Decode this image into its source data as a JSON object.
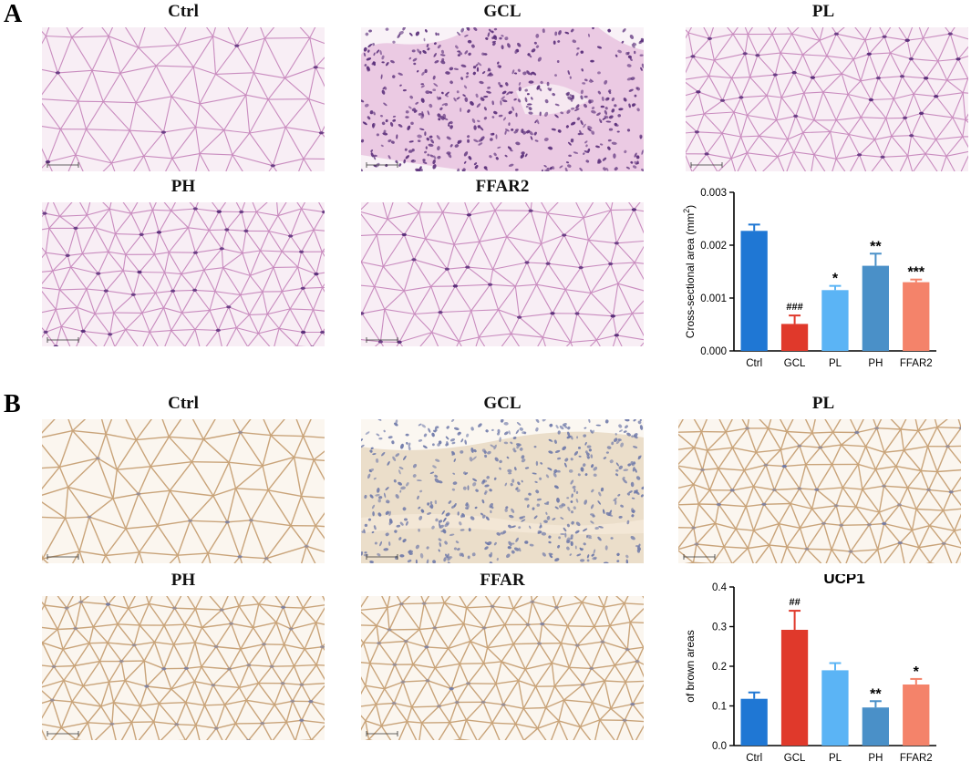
{
  "panel_a": {
    "letter": "A",
    "images": [
      {
        "title": "Ctrl",
        "stain": "he",
        "kind": "adipose-large"
      },
      {
        "title": "GCL",
        "stain": "he",
        "kind": "dense"
      },
      {
        "title": "PL",
        "stain": "he",
        "kind": "adipose-small"
      },
      {
        "title": "PH",
        "stain": "he",
        "kind": "adipose-small"
      },
      {
        "title": "FFAR2",
        "stain": "he",
        "kind": "adipose-medium"
      }
    ]
  },
  "panel_b": {
    "letter": "B",
    "images": [
      {
        "title": "Ctrl",
        "stain": "ihc",
        "kind": "adipose-large"
      },
      {
        "title": "GCL",
        "stain": "ihc",
        "kind": "dense"
      },
      {
        "title": "PL",
        "stain": "ihc",
        "kind": "adipose-small"
      },
      {
        "title": "PH",
        "stain": "ihc",
        "kind": "adipose-small"
      },
      {
        "title": "FFAR",
        "stain": "ihc",
        "kind": "adipose-small"
      }
    ]
  },
  "colors": {
    "ctrl": "#1f77d4",
    "gcl": "#e0392b",
    "pl": "#5bb4f5",
    "ph": "#4a90c8",
    "ffar2": "#f4836a",
    "he_bg": "#f8eef5",
    "he_membrane": "#c98cbf",
    "he_nucleus": "#5a2f7a",
    "ihc_bg": "#fbf6ef",
    "ihc_membrane": "#c9a47a",
    "ihc_nucleus": "#6c77a8"
  },
  "chart_data": [
    {
      "type": "bar",
      "title": "",
      "ylabel": "Cross-sectional area (mm",
      "ylabel_sup": "2",
      "ylabel_end": ")",
      "xlabel": "",
      "categories": [
        "Ctrl",
        "GCL",
        "PL",
        "PH",
        "FFAR2"
      ],
      "values": [
        0.00227,
        0.00051,
        0.00115,
        0.00161,
        0.0013
      ],
      "errors": [
        0.00012,
        0.00016,
        8e-05,
        0.00023,
        5e-05
      ],
      "annotations": [
        "",
        "###",
        "*",
        "**",
        "***"
      ],
      "ylim": [
        0,
        0.003
      ],
      "yticks": [
        "0.000",
        "0.001",
        "0.002",
        "0.003"
      ],
      "ytick_values": [
        0,
        0.001,
        0.002,
        0.003
      ]
    },
    {
      "type": "bar",
      "title": "UCP1",
      "ylabel": "of brown areas",
      "xlabel": "",
      "categories": [
        "Ctrl",
        "GCL",
        "PL",
        "PH",
        "FFAR2"
      ],
      "values": [
        0.118,
        0.292,
        0.19,
        0.096,
        0.154
      ],
      "errors": [
        0.016,
        0.048,
        0.018,
        0.016,
        0.014
      ],
      "annotations": [
        "",
        "##",
        "",
        "**",
        "*"
      ],
      "ylim": [
        0,
        0.4
      ],
      "yticks": [
        "0.0",
        "0.1",
        "0.2",
        "0.3",
        "0.4"
      ],
      "ytick_values": [
        0,
        0.1,
        0.2,
        0.3,
        0.4
      ]
    }
  ]
}
